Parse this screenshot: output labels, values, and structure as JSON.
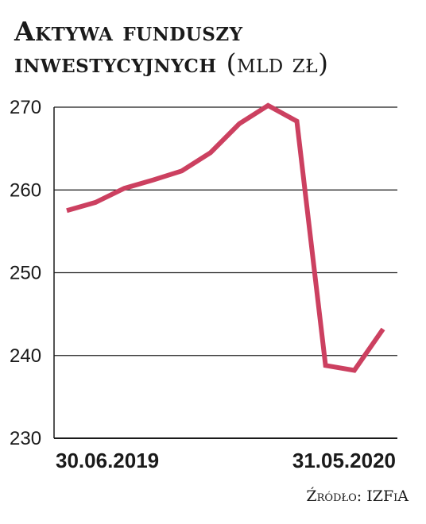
{
  "title": {
    "main": "Aktywa funduszy inwestycyjnych",
    "unit": "(mld zł)"
  },
  "source": "Źródło: IZFiA",
  "colors": {
    "line": "#cc4060",
    "grid": "#1a1a1a",
    "text": "#1a1a1a"
  },
  "chart_data": {
    "type": "line",
    "title": "Aktywa funduszy inwestycyjnych (mld zł)",
    "xlabel": "",
    "ylabel": "",
    "ylim": [
      230,
      270
    ],
    "yticks": [
      270,
      260,
      250,
      240,
      230
    ],
    "grid": true,
    "x_tick_labels": [
      "30.06.2019",
      "31.05.2020"
    ],
    "x": [
      "2019-06-30",
      "2019-07-31",
      "2019-08-31",
      "2019-09-30",
      "2019-10-31",
      "2019-11-30",
      "2019-12-31",
      "2020-01-31",
      "2020-02-29",
      "2020-03-31",
      "2020-04-30",
      "2020-05-31"
    ],
    "series": [
      {
        "values": [
          257.5,
          258.5,
          260.2,
          261.2,
          262.3,
          264.5,
          268.0,
          270.2,
          268.3,
          238.8,
          238.2,
          243.2
        ]
      }
    ]
  }
}
